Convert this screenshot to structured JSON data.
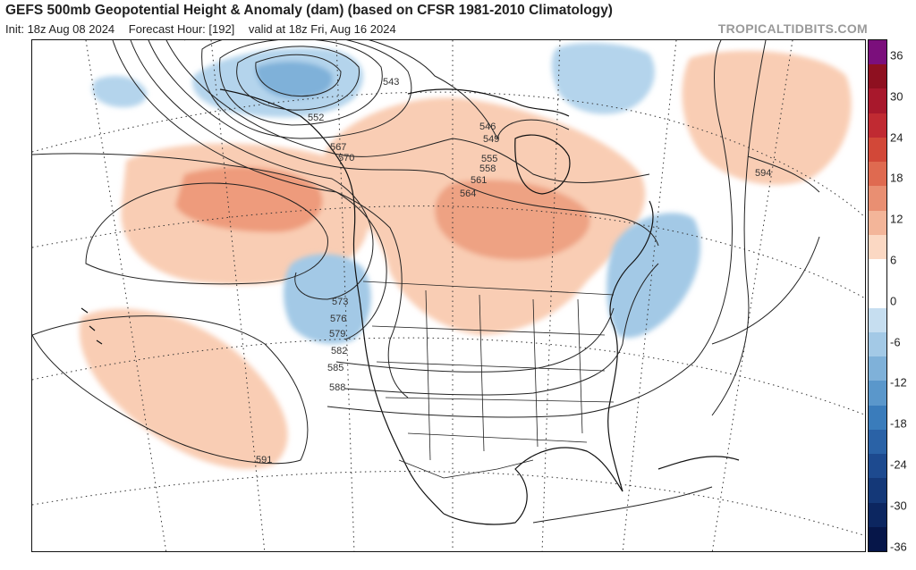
{
  "header": {
    "title": "GEFS 500mb Geopotential Height & Anomaly (dam) (based on CFSR 1981-2010 Climatology)",
    "init": "Init: 18z Aug 08 2024",
    "forecast_hour": "Forecast Hour: [192]",
    "valid": "valid at 18z Fri, Aug 16 2024",
    "brand": "TROPICALTIDBITS.COM"
  },
  "colorbar": {
    "labels": [
      "36",
      "30",
      "24",
      "18",
      "12",
      "6",
      "0",
      "-6",
      "-12",
      "-18",
      "-24",
      "-30",
      "-36"
    ],
    "colors": [
      "#7b0f7c",
      "#8e1020",
      "#a8182c",
      "#c02a32",
      "#d24838",
      "#df6a50",
      "#e98f72",
      "#f3b599",
      "#fbd8c3",
      "#ffffff",
      "#ffffff",
      "#c6def0",
      "#a3c9e6",
      "#7fb1d9",
      "#5a97cb",
      "#3a7cbb",
      "#2a62a6",
      "#1d4a8f",
      "#143878",
      "#0c2660",
      "#061649"
    ]
  },
  "map": {
    "height_contour_labels": [
      "543",
      "546",
      "549",
      "552",
      "555",
      "558",
      "561",
      "564",
      "567",
      "570",
      "573",
      "576",
      "579",
      "582",
      "585",
      "588",
      "591",
      "594"
    ],
    "legend_colors": {
      "positive": "#e9926f",
      "negative": "#8fbfe0",
      "contour": "#222222",
      "coast": "#111111"
    }
  }
}
